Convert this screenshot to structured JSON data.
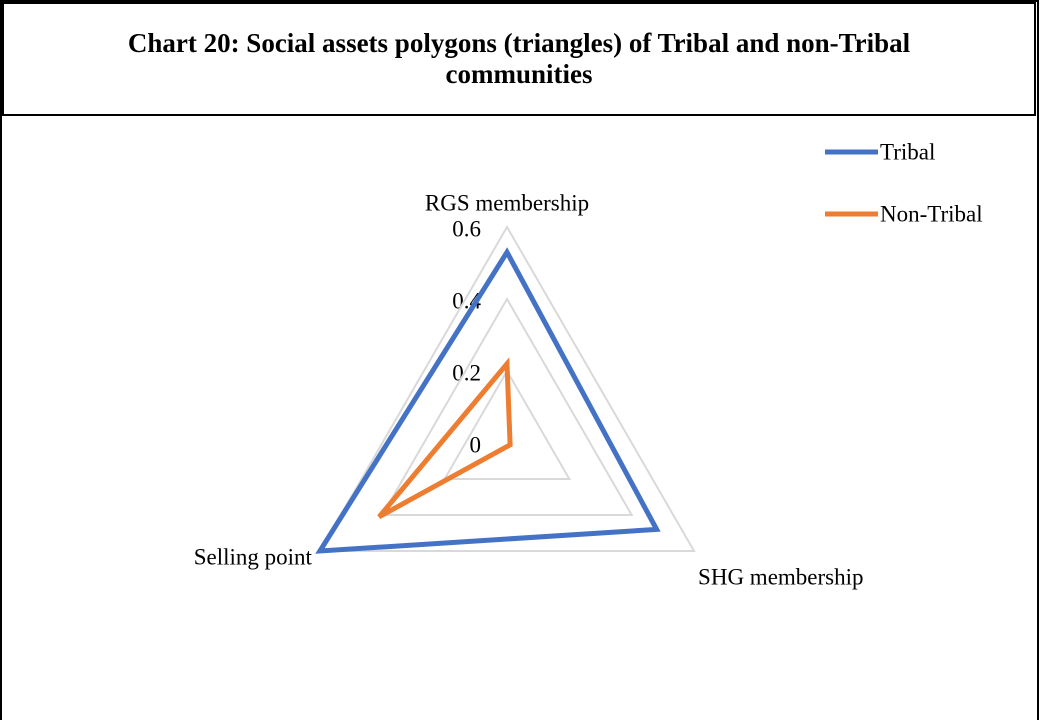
{
  "chart_data": {
    "type": "radar",
    "title": "Chart 20: Social assets polygons (triangles) of Tribal and non-Tribal communities",
    "categories": [
      "RGS membership",
      "SHG membership",
      "Selling point"
    ],
    "series": [
      {
        "name": "Tribal",
        "color": "#4472c4",
        "values": [
          0.53,
          0.48,
          0.6
        ]
      },
      {
        "name": "Non-Tribal",
        "color": "#ed7d31",
        "values": [
          0.22,
          0.01,
          0.41
        ]
      }
    ],
    "ylim": [
      0,
      0.6
    ],
    "yticks": [
      0,
      0.2,
      0.4,
      0.6
    ],
    "grid": true,
    "legend": "top-right"
  }
}
